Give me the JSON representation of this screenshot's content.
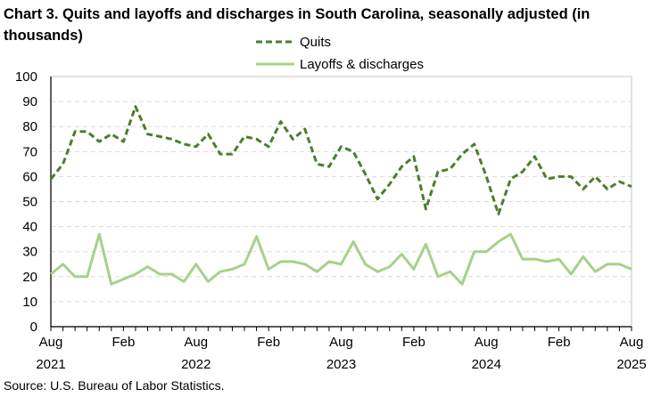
{
  "chart_data": {
    "type": "line",
    "title": "Chart 3. Quits and layoffs and discharges in South Carolina, seasonally adjusted (in thousands)",
    "source": "Source: U.S. Bureau of Labor Statistics.",
    "xlabel": "",
    "ylabel": "",
    "ylim": [
      0,
      100
    ],
    "yticks": [
      0,
      10,
      20,
      30,
      40,
      50,
      60,
      70,
      80,
      90,
      100
    ],
    "grid": true,
    "legend_position": "top-center",
    "x_start": "Aug 2021",
    "x_end": "Aug 2025",
    "x_tick_labels": [
      {
        "month": "Aug",
        "year": "2021",
        "index": 0
      },
      {
        "month": "Feb",
        "year": "",
        "index": 6
      },
      {
        "month": "Aug",
        "year": "2022",
        "index": 12
      },
      {
        "month": "Feb",
        "year": "",
        "index": 18
      },
      {
        "month": "Aug",
        "year": "2023",
        "index": 24
      },
      {
        "month": "Feb",
        "year": "",
        "index": 30
      },
      {
        "month": "Aug",
        "year": "2024",
        "index": 36
      },
      {
        "month": "Feb",
        "year": "",
        "index": 42
      },
      {
        "month": "Aug",
        "year": "2025",
        "index": 48
      }
    ],
    "series": [
      {
        "name": "Quits",
        "color": "#4e7d2e",
        "style": "dashed",
        "values": [
          59,
          65,
          78,
          78,
          74,
          77,
          74,
          88,
          77,
          76,
          75,
          73,
          72,
          77,
          69,
          69,
          76,
          75,
          72,
          82,
          75,
          79,
          65,
          64,
          72,
          70,
          61,
          51,
          57,
          64,
          68,
          47,
          62,
          63,
          69,
          73,
          60,
          45,
          59,
          62,
          68,
          59,
          60,
          60,
          55,
          60,
          55,
          58,
          56
        ]
      },
      {
        "name": "Layoffs & discharges",
        "color": "#a5d28a",
        "style": "solid",
        "values": [
          21,
          25,
          20,
          20,
          37,
          17,
          19,
          21,
          24,
          21,
          21,
          18,
          25,
          18,
          22,
          23,
          25,
          36,
          23,
          26,
          26,
          25,
          22,
          26,
          25,
          34,
          25,
          22,
          24,
          29,
          23,
          33,
          20,
          22,
          17,
          30,
          30,
          34,
          37,
          27,
          27,
          26,
          27,
          21,
          28,
          22,
          25,
          25,
          23
        ]
      }
    ]
  }
}
